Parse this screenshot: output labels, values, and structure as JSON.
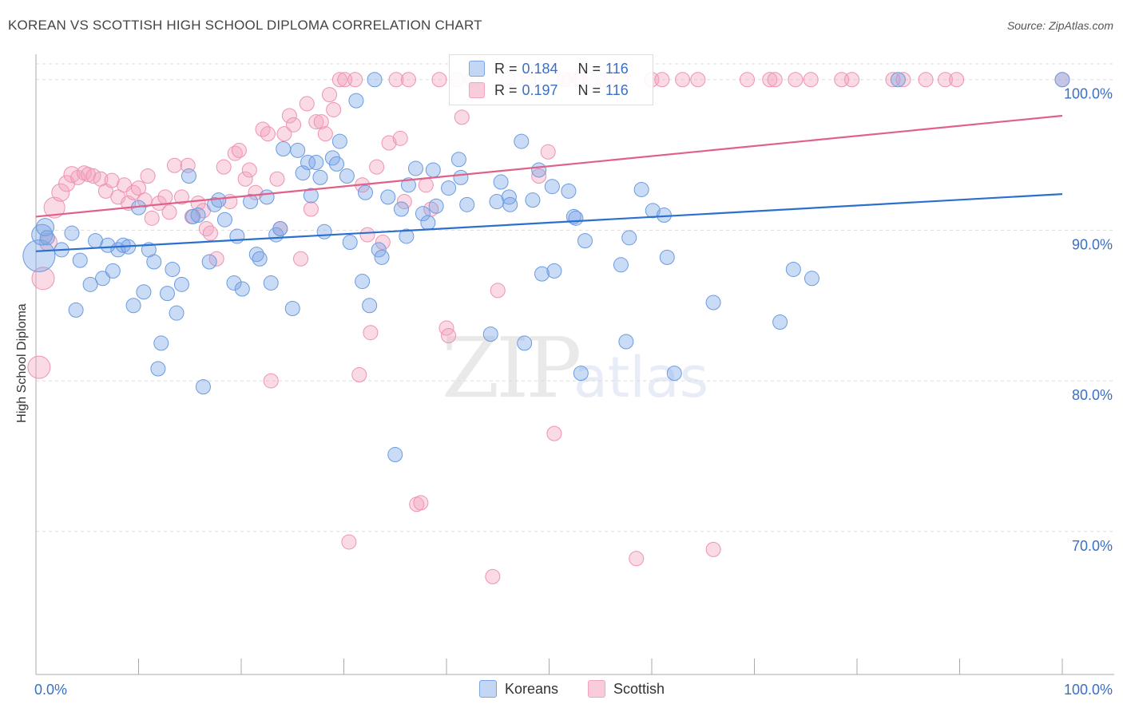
{
  "title": "KOREAN VS SCOTTISH HIGH SCHOOL DIPLOMA CORRELATION CHART",
  "source": "Source: ZipAtlas.com",
  "colors": {
    "koreans": "#7aa6e6",
    "scottish": "#f2a3bd",
    "koreans_line": "#2b6fcf",
    "scottish_line": "#e0608a",
    "axis_text": "#3a6fc4"
  },
  "legend": {
    "koreans": {
      "r_label": "R =",
      "r_value": "0.184",
      "n_label": "N =",
      "n_value": "116"
    },
    "scottish": {
      "r_label": "R =",
      "r_value": "0.197",
      "n_label": "N =",
      "n_value": "116"
    }
  },
  "bottom_legend": {
    "koreans": "Koreans",
    "scottish": "Scottish"
  },
  "watermark": {
    "zip": "ZIP",
    "atlas": "atlas"
  },
  "chart_data": {
    "type": "scatter",
    "xlabel": "",
    "ylabel": "High School Diploma",
    "xlim": [
      0,
      100
    ],
    "ylim": [
      60.5,
      102
    ],
    "x_tick_labels": [
      "0.0%",
      "100.0%"
    ],
    "y_ticks": [
      {
        "value": 100,
        "label": "100.0%"
      },
      {
        "value": 90,
        "label": "90.0%"
      },
      {
        "value": 80,
        "label": "80.0%"
      },
      {
        "value": 70,
        "label": "70.0%"
      }
    ],
    "grid": "horizontal-dashed",
    "legend_position": "top-center",
    "series": [
      {
        "name": "Koreans",
        "trend": {
          "x": [
            0,
            100
          ],
          "y": [
            88.6,
            92.4
          ]
        },
        "points": [
          [
            0.3,
            88.3,
            20
          ],
          [
            0.6,
            89.7,
            13
          ],
          [
            0.9,
            90.2,
            11
          ],
          [
            1.1,
            89.5,
            9
          ],
          [
            2.5,
            88.7,
            9
          ],
          [
            3.5,
            89.8,
            9
          ],
          [
            3.9,
            84.7,
            9
          ],
          [
            4.3,
            88.0,
            9
          ],
          [
            5.3,
            86.4,
            9
          ],
          [
            5.8,
            89.3,
            9
          ],
          [
            6.5,
            86.8,
            9
          ],
          [
            7.0,
            89.0,
            9
          ],
          [
            7.5,
            87.3,
            9
          ],
          [
            8.0,
            88.7,
            9
          ],
          [
            8.5,
            89.0,
            9
          ],
          [
            9.0,
            88.9,
            9
          ],
          [
            9.5,
            85.0,
            9
          ],
          [
            10.0,
            91.5,
            9
          ],
          [
            10.5,
            85.9,
            9
          ],
          [
            11.0,
            88.7,
            9
          ],
          [
            11.5,
            87.9,
            9
          ],
          [
            11.9,
            80.8,
            9
          ],
          [
            12.2,
            82.5,
            9
          ],
          [
            12.8,
            85.8,
            9
          ],
          [
            13.3,
            87.4,
            9
          ],
          [
            13.7,
            84.5,
            9
          ],
          [
            14.2,
            86.4,
            9
          ],
          [
            14.9,
            93.6,
            9
          ],
          [
            15.3,
            90.9,
            9
          ],
          [
            15.8,
            91.0,
            9
          ],
          [
            16.3,
            79.6,
            9
          ],
          [
            16.9,
            87.9,
            9
          ],
          [
            17.4,
            91.7,
            9
          ],
          [
            17.8,
            92.0,
            9
          ],
          [
            18.4,
            90.7,
            9
          ],
          [
            19.3,
            86.5,
            9
          ],
          [
            19.6,
            89.6,
            9
          ],
          [
            20.1,
            86.1,
            9
          ],
          [
            20.9,
            91.9,
            9
          ],
          [
            21.5,
            88.4,
            9
          ],
          [
            21.8,
            88.1,
            9
          ],
          [
            22.5,
            92.2,
            9
          ],
          [
            22.9,
            86.5,
            9
          ],
          [
            23.4,
            89.7,
            9
          ],
          [
            23.8,
            90.1,
            9
          ],
          [
            24.1,
            95.4,
            9
          ],
          [
            25.0,
            84.8,
            9
          ],
          [
            25.5,
            95.3,
            9
          ],
          [
            26.0,
            93.8,
            9
          ],
          [
            26.5,
            94.5,
            9
          ],
          [
            26.8,
            92.3,
            9
          ],
          [
            27.3,
            94.5,
            9
          ],
          [
            27.7,
            93.5,
            9
          ],
          [
            28.1,
            89.9,
            9
          ],
          [
            28.9,
            94.8,
            9
          ],
          [
            29.3,
            94.4,
            9
          ],
          [
            29.6,
            95.9,
            9
          ],
          [
            30.3,
            93.6,
            9
          ],
          [
            30.6,
            89.2,
            9
          ],
          [
            31.2,
            98.6,
            9
          ],
          [
            31.8,
            86.6,
            9
          ],
          [
            32.1,
            92.5,
            9
          ],
          [
            32.5,
            85.0,
            9
          ],
          [
            33.0,
            100.0,
            9
          ],
          [
            33.4,
            88.7,
            9
          ],
          [
            33.7,
            88.2,
            9
          ],
          [
            34.3,
            92.2,
            9
          ],
          [
            35.0,
            75.1,
            9
          ],
          [
            35.6,
            91.4,
            9
          ],
          [
            36.1,
            89.6,
            9
          ],
          [
            36.3,
            93.0,
            9
          ],
          [
            37.0,
            94.1,
            9
          ],
          [
            37.7,
            91.1,
            9
          ],
          [
            38.2,
            90.5,
            9
          ],
          [
            38.7,
            94.0,
            9
          ],
          [
            39.0,
            91.6,
            9
          ],
          [
            40.2,
            92.8,
            9
          ],
          [
            41.2,
            94.7,
            9
          ],
          [
            41.4,
            93.5,
            9
          ],
          [
            42.0,
            91.7,
            9
          ],
          [
            44.3,
            83.1,
            9
          ],
          [
            44.9,
            91.9,
            9
          ],
          [
            45.3,
            93.2,
            9
          ],
          [
            46.1,
            92.2,
            9
          ],
          [
            46.2,
            91.7,
            9
          ],
          [
            47.3,
            95.9,
            9
          ],
          [
            47.6,
            82.5,
            9
          ],
          [
            48.4,
            92.0,
            9
          ],
          [
            49.0,
            94.0,
            9
          ],
          [
            49.3,
            87.1,
            9
          ],
          [
            50.3,
            92.9,
            9
          ],
          [
            50.5,
            87.3,
            9
          ],
          [
            51.9,
            92.6,
            9
          ],
          [
            52.4,
            90.9,
            9
          ],
          [
            52.6,
            90.8,
            9
          ],
          [
            53.1,
            80.5,
            9
          ],
          [
            53.5,
            89.3,
            9
          ],
          [
            57.0,
            87.7,
            9
          ],
          [
            57.5,
            82.6,
            9
          ],
          [
            57.8,
            89.5,
            9
          ],
          [
            59.0,
            92.7,
            9
          ],
          [
            60.1,
            91.3,
            9
          ],
          [
            61.2,
            91.0,
            9
          ],
          [
            61.5,
            88.2,
            9
          ],
          [
            62.2,
            80.5,
            9
          ],
          [
            66.0,
            85.2,
            9
          ],
          [
            72.5,
            83.9,
            9
          ],
          [
            73.8,
            87.4,
            9
          ],
          [
            75.6,
            86.8,
            9
          ],
          [
            84.0,
            100.0,
            9
          ],
          [
            100.0,
            100.0,
            9
          ]
        ]
      },
      {
        "name": "Scottish",
        "trend": {
          "x": [
            0,
            100
          ],
          "y": [
            90.9,
            97.6
          ]
        },
        "points": [
          [
            0.3,
            80.9,
            14
          ],
          [
            0.7,
            86.8,
            14
          ],
          [
            1.2,
            89.2,
            11
          ],
          [
            1.8,
            91.5,
            13
          ],
          [
            2.4,
            92.5,
            11
          ],
          [
            3.0,
            93.1,
            10
          ],
          [
            3.5,
            93.7,
            10
          ],
          [
            4.1,
            93.5,
            9
          ],
          [
            4.7,
            93.8,
            9
          ],
          [
            5.1,
            93.7,
            9
          ],
          [
            5.6,
            93.6,
            9
          ],
          [
            6.3,
            93.4,
            9
          ],
          [
            6.8,
            92.6,
            9
          ],
          [
            7.4,
            93.3,
            9
          ],
          [
            8.0,
            92.2,
            9
          ],
          [
            8.6,
            93.0,
            9
          ],
          [
            9.0,
            91.8,
            9
          ],
          [
            9.5,
            92.5,
            9
          ],
          [
            10.0,
            92.8,
            9
          ],
          [
            10.6,
            92.0,
            9
          ],
          [
            10.9,
            93.6,
            9
          ],
          [
            11.3,
            90.8,
            9
          ],
          [
            12.0,
            91.8,
            9
          ],
          [
            12.6,
            92.2,
            9
          ],
          [
            13.0,
            91.2,
            9
          ],
          [
            13.5,
            94.3,
            9
          ],
          [
            14.2,
            92.2,
            9
          ],
          [
            14.8,
            94.3,
            9
          ],
          [
            15.2,
            90.9,
            9
          ],
          [
            15.8,
            91.8,
            9
          ],
          [
            16.3,
            91.3,
            9
          ],
          [
            16.6,
            90.1,
            9
          ],
          [
            17.0,
            89.8,
            9
          ],
          [
            17.6,
            88.1,
            9
          ],
          [
            18.3,
            94.2,
            9
          ],
          [
            18.9,
            91.9,
            9
          ],
          [
            19.4,
            95.1,
            9
          ],
          [
            19.8,
            95.3,
            9
          ],
          [
            20.4,
            93.4,
            9
          ],
          [
            20.8,
            94.0,
            9
          ],
          [
            21.4,
            92.5,
            9
          ],
          [
            22.1,
            96.7,
            9
          ],
          [
            22.6,
            96.4,
            9
          ],
          [
            22.9,
            80.0,
            9
          ],
          [
            23.5,
            93.4,
            9
          ],
          [
            23.8,
            90.1,
            9
          ],
          [
            24.2,
            96.4,
            9
          ],
          [
            24.7,
            97.6,
            9
          ],
          [
            25.1,
            97.0,
            9
          ],
          [
            25.8,
            88.1,
            9
          ],
          [
            26.4,
            98.4,
            9
          ],
          [
            26.8,
            91.4,
            9
          ],
          [
            27.3,
            97.2,
            9
          ],
          [
            27.8,
            97.2,
            9
          ],
          [
            28.2,
            96.4,
            9
          ],
          [
            28.6,
            99.0,
            9
          ],
          [
            29.0,
            98.0,
            9
          ],
          [
            29.6,
            100.0,
            9
          ],
          [
            30.1,
            100.0,
            9
          ],
          [
            30.5,
            69.3,
            9
          ],
          [
            31.1,
            100.0,
            9
          ],
          [
            31.5,
            80.4,
            9
          ],
          [
            31.8,
            93.0,
            9
          ],
          [
            32.3,
            89.7,
            9
          ],
          [
            32.6,
            83.2,
            9
          ],
          [
            33.2,
            94.2,
            9
          ],
          [
            33.8,
            89.2,
            9
          ],
          [
            34.4,
            95.8,
            9
          ],
          [
            35.1,
            100.0,
            9
          ],
          [
            35.5,
            96.1,
            9
          ],
          [
            35.9,
            91.9,
            9
          ],
          [
            36.3,
            100.0,
            9
          ],
          [
            37.1,
            71.8,
            9
          ],
          [
            37.5,
            71.9,
            9
          ],
          [
            38.0,
            93.0,
            9
          ],
          [
            38.5,
            91.4,
            9
          ],
          [
            39.3,
            100.0,
            9
          ],
          [
            40.0,
            83.5,
            9
          ],
          [
            40.2,
            83.0,
            9
          ],
          [
            41.0,
            100.0,
            9
          ],
          [
            41.5,
            97.5,
            9
          ],
          [
            42.5,
            100.0,
            9
          ],
          [
            44.5,
            67.0,
            9
          ],
          [
            45.0,
            86.0,
            9
          ],
          [
            46.0,
            100.0,
            9
          ],
          [
            48.0,
            100.0,
            9
          ],
          [
            49.0,
            93.6,
            9
          ],
          [
            49.9,
            95.2,
            9
          ],
          [
            50.5,
            76.5,
            9
          ],
          [
            51.5,
            100.0,
            9
          ],
          [
            52.0,
            100.0,
            9
          ],
          [
            53.0,
            100.0,
            9
          ],
          [
            54.0,
            100.0,
            9
          ],
          [
            55.5,
            100.0,
            9
          ],
          [
            57.0,
            100.0,
            9
          ],
          [
            58.5,
            68.2,
            9
          ],
          [
            60.0,
            100.0,
            9
          ],
          [
            61.0,
            100.0,
            9
          ],
          [
            63.0,
            100.0,
            9
          ],
          [
            64.5,
            100.0,
            9
          ],
          [
            66.0,
            68.8,
            9
          ],
          [
            69.3,
            100.0,
            9
          ],
          [
            71.5,
            100.0,
            9
          ],
          [
            72.0,
            100.0,
            9
          ],
          [
            74.0,
            100.0,
            9
          ],
          [
            75.5,
            100.0,
            9
          ],
          [
            78.5,
            100.0,
            9
          ],
          [
            79.5,
            100.0,
            9
          ],
          [
            83.5,
            100.0,
            9
          ],
          [
            84.5,
            100.0,
            9
          ],
          [
            86.7,
            100.0,
            9
          ],
          [
            88.6,
            100.0,
            9
          ],
          [
            89.7,
            100.0,
            9
          ],
          [
            100.0,
            100.0,
            9
          ]
        ]
      }
    ]
  }
}
